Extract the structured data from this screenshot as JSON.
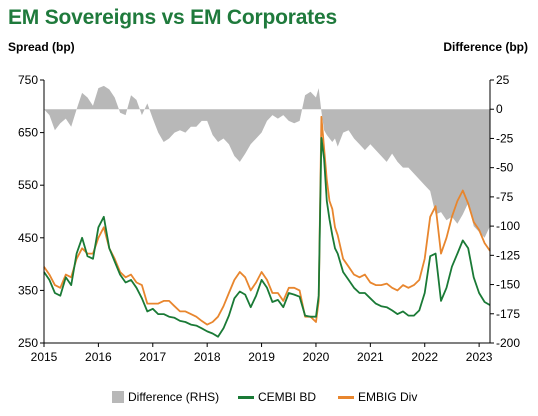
{
  "chart_data": {
    "type": "line",
    "title": "EM Sovereigns vs EM Corporates",
    "ylabel_left": "Spread (bp)",
    "ylabel_right": "Difference (bp)",
    "xlim": [
      2015.0,
      2023.2
    ],
    "ylim_left": [
      250,
      750
    ],
    "ylim_right": [
      -200,
      25
    ],
    "x_ticks": [
      "2015",
      "2016",
      "2017",
      "2018",
      "2019",
      "2020",
      "2021",
      "2022",
      "2023"
    ],
    "y_ticks_left": [
      "250",
      "350",
      "450",
      "550",
      "650",
      "750"
    ],
    "y_ticks_right": [
      "-200",
      "-175",
      "-150",
      "-125",
      "-100",
      "-75",
      "-50",
      "-25",
      "0",
      "25"
    ],
    "legend_position": "bottom",
    "grid": false,
    "series": [
      {
        "name": "Difference (RHS)",
        "kind": "area",
        "axis": "right",
        "color": "#b8b8b8",
        "x": [
          2015.0,
          2015.1,
          2015.2,
          2015.3,
          2015.4,
          2015.5,
          2015.6,
          2015.7,
          2015.8,
          2015.9,
          2016.0,
          2016.1,
          2016.2,
          2016.3,
          2016.4,
          2016.5,
          2016.6,
          2016.7,
          2016.8,
          2016.9,
          2017.0,
          2017.1,
          2017.2,
          2017.3,
          2017.4,
          2017.5,
          2017.6,
          2017.7,
          2017.8,
          2017.9,
          2018.0,
          2018.1,
          2018.2,
          2018.3,
          2018.4,
          2018.5,
          2018.6,
          2018.7,
          2018.8,
          2018.9,
          2019.0,
          2019.1,
          2019.2,
          2019.3,
          2019.4,
          2019.5,
          2019.6,
          2019.7,
          2019.8,
          2019.9,
          2020.0,
          2020.05,
          2020.1,
          2020.15,
          2020.2,
          2020.25,
          2020.3,
          2020.35,
          2020.4,
          2020.5,
          2020.6,
          2020.7,
          2020.8,
          2020.9,
          2021.0,
          2021.1,
          2021.2,
          2021.3,
          2021.4,
          2021.5,
          2021.6,
          2021.7,
          2021.8,
          2021.9,
          2022.0,
          2022.1,
          2022.2,
          2022.3,
          2022.4,
          2022.5,
          2022.6,
          2022.7,
          2022.8,
          2022.9,
          2023.0,
          2023.1,
          2023.2
        ],
        "values": [
          0,
          -5,
          -18,
          -12,
          -8,
          -15,
          0,
          14,
          10,
          3,
          18,
          20,
          17,
          10,
          -3,
          -5,
          12,
          8,
          -5,
          5,
          -8,
          -20,
          -28,
          -25,
          -20,
          -18,
          -20,
          -15,
          -15,
          -10,
          -10,
          -22,
          -28,
          -25,
          -30,
          -40,
          -45,
          -38,
          -30,
          -25,
          -20,
          -10,
          -5,
          -8,
          -5,
          -10,
          -12,
          -10,
          12,
          15,
          10,
          18,
          -2,
          -18,
          -22,
          -25,
          -28,
          -25,
          -32,
          -20,
          -18,
          -25,
          -30,
          -35,
          -30,
          -35,
          -40,
          -45,
          -38,
          -45,
          -50,
          -50,
          -55,
          -60,
          -65,
          -70,
          -90,
          -88,
          -95,
          -92,
          -98,
          -90,
          -80,
          -100,
          -105,
          -110,
          -100
        ]
      },
      {
        "name": "CEMBI BD",
        "kind": "line",
        "axis": "left",
        "color": "#1a7a36",
        "x": [
          2015.0,
          2015.1,
          2015.2,
          2015.3,
          2015.4,
          2015.5,
          2015.6,
          2015.7,
          2015.8,
          2015.9,
          2016.0,
          2016.1,
          2016.2,
          2016.3,
          2016.4,
          2016.5,
          2016.6,
          2016.7,
          2016.8,
          2016.9,
          2017.0,
          2017.1,
          2017.2,
          2017.3,
          2017.4,
          2017.5,
          2017.6,
          2017.7,
          2017.8,
          2017.9,
          2018.0,
          2018.1,
          2018.2,
          2018.3,
          2018.4,
          2018.5,
          2018.6,
          2018.7,
          2018.8,
          2018.9,
          2019.0,
          2019.1,
          2019.2,
          2019.3,
          2019.4,
          2019.5,
          2019.6,
          2019.7,
          2019.8,
          2019.9,
          2020.0,
          2020.05,
          2020.1,
          2020.15,
          2020.2,
          2020.25,
          2020.3,
          2020.35,
          2020.4,
          2020.5,
          2020.6,
          2020.7,
          2020.8,
          2020.9,
          2021.0,
          2021.1,
          2021.2,
          2021.3,
          2021.4,
          2021.5,
          2021.6,
          2021.7,
          2021.8,
          2021.9,
          2022.0,
          2022.1,
          2022.2,
          2022.3,
          2022.4,
          2022.5,
          2022.6,
          2022.7,
          2022.8,
          2022.9,
          2023.0,
          2023.1,
          2023.2
        ],
        "values": [
          385,
          370,
          345,
          340,
          375,
          360,
          420,
          450,
          415,
          410,
          470,
          490,
          430,
          405,
          380,
          365,
          370,
          355,
          335,
          310,
          315,
          305,
          305,
          300,
          298,
          292,
          290,
          285,
          283,
          278,
          272,
          268,
          262,
          278,
          302,
          335,
          348,
          342,
          318,
          340,
          370,
          355,
          328,
          332,
          318,
          345,
          342,
          338,
          302,
          300,
          300,
          340,
          640,
          600,
          520,
          485,
          455,
          430,
          420,
          385,
          370,
          355,
          345,
          345,
          335,
          325,
          320,
          318,
          312,
          305,
          310,
          302,
          302,
          312,
          345,
          415,
          420,
          330,
          355,
          395,
          420,
          445,
          430,
          375,
          345,
          328,
          322
        ]
      },
      {
        "name": "EMBIG Div",
        "kind": "line",
        "axis": "left",
        "color": "#e8862e",
        "x": [
          2015.0,
          2015.1,
          2015.2,
          2015.3,
          2015.4,
          2015.5,
          2015.6,
          2015.7,
          2015.8,
          2015.9,
          2016.0,
          2016.1,
          2016.2,
          2016.3,
          2016.4,
          2016.5,
          2016.6,
          2016.7,
          2016.8,
          2016.9,
          2017.0,
          2017.1,
          2017.2,
          2017.3,
          2017.4,
          2017.5,
          2017.6,
          2017.7,
          2017.8,
          2017.9,
          2018.0,
          2018.1,
          2018.2,
          2018.3,
          2018.4,
          2018.5,
          2018.6,
          2018.7,
          2018.8,
          2018.9,
          2019.0,
          2019.1,
          2019.2,
          2019.3,
          2019.4,
          2019.5,
          2019.6,
          2019.7,
          2019.8,
          2019.9,
          2020.0,
          2020.05,
          2020.1,
          2020.15,
          2020.2,
          2020.25,
          2020.3,
          2020.35,
          2020.4,
          2020.5,
          2020.6,
          2020.7,
          2020.8,
          2020.9,
          2021.0,
          2021.1,
          2021.2,
          2021.3,
          2021.4,
          2021.5,
          2021.6,
          2021.7,
          2021.8,
          2021.9,
          2022.0,
          2022.1,
          2022.2,
          2022.3,
          2022.4,
          2022.5,
          2022.6,
          2022.7,
          2022.8,
          2022.9,
          2023.0,
          2023.1,
          2023.2
        ],
        "values": [
          395,
          380,
          360,
          355,
          380,
          375,
          410,
          430,
          420,
          420,
          450,
          470,
          430,
          410,
          385,
          375,
          380,
          365,
          360,
          325,
          325,
          325,
          330,
          330,
          320,
          310,
          310,
          305,
          300,
          292,
          285,
          290,
          300,
          320,
          345,
          370,
          385,
          375,
          350,
          365,
          385,
          370,
          345,
          345,
          330,
          355,
          355,
          350,
          300,
          300,
          290,
          330,
          680,
          620,
          560,
          520,
          505,
          470,
          455,
          410,
          395,
          380,
          375,
          380,
          365,
          360,
          360,
          363,
          355,
          350,
          360,
          355,
          360,
          370,
          410,
          490,
          510,
          420,
          450,
          490,
          520,
          540,
          515,
          480,
          465,
          440,
          425
        ]
      }
    ]
  }
}
